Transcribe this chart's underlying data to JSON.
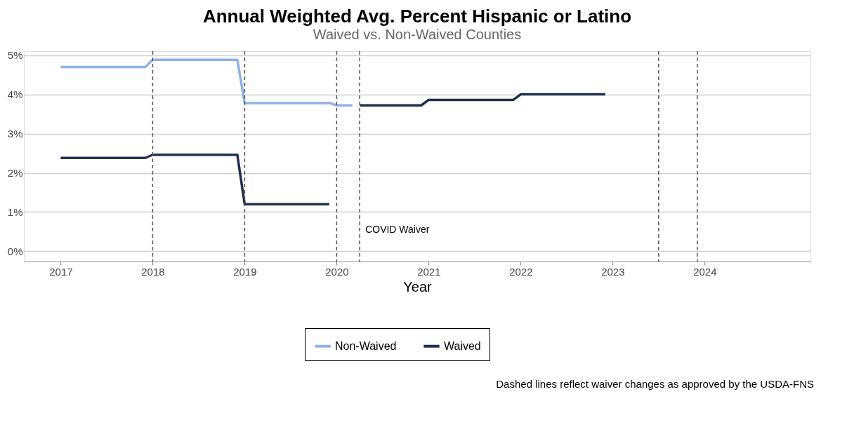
{
  "chart_data": {
    "type": "line",
    "title": "Annual Weighted Avg. Percent Hispanic or Latino",
    "subtitle": "Waived vs. Non-Waived Counties",
    "xlabel": "Year",
    "series": [
      {
        "name": "Non-Waived",
        "color": "#8fb0e8",
        "x": [
          2017,
          2017.92,
          2018,
          2018.92,
          2019,
          2019.92,
          2020,
          2020.17
        ],
        "values": [
          4.7,
          4.7,
          4.88,
          4.88,
          3.78,
          3.78,
          3.72,
          3.72
        ]
      },
      {
        "name": "Waived",
        "color": "#1f2f4d",
        "x": [
          2017,
          2017.92,
          2018,
          2018.92,
          2019,
          2019.92,
          2020.1,
          2020.25,
          2020.92,
          2021,
          2021.92,
          2022,
          2022.92
        ],
        "values": [
          2.38,
          2.38,
          2.46,
          2.46,
          1.2,
          1.2,
          null,
          3.72,
          3.72,
          3.86,
          3.86,
          4.0,
          4.0
        ]
      }
    ],
    "xlim": [
      2016.6,
      2025.15
    ],
    "xticks": [
      2017,
      2018,
      2019,
      2020,
      2021,
      2022,
      2023,
      2024
    ],
    "ylim": [
      -0.26,
      5.1
    ],
    "yticks": [
      {
        "value": 0,
        "label": "0%"
      },
      {
        "value": 1,
        "label": "1%"
      },
      {
        "value": 2,
        "label": "2%"
      },
      {
        "value": 3,
        "label": "3%"
      },
      {
        "value": 4,
        "label": "4%"
      },
      {
        "value": 5,
        "label": "5%"
      }
    ],
    "ref_lines": [
      {
        "axis": "x",
        "value": 2018,
        "color": "#555555",
        "line_style": "dashed"
      },
      {
        "axis": "x",
        "value": 2019,
        "color": "#555555",
        "line_style": "dashed"
      },
      {
        "axis": "x",
        "value": 2020,
        "color": "#555555",
        "line_style": "dashed"
      },
      {
        "axis": "x",
        "value": 2020.25,
        "label": "COVID Waiver",
        "color": "#555555",
        "line_style": "dashed"
      },
      {
        "axis": "x",
        "value": 2023.5,
        "color": "#555555",
        "line_style": "dashed"
      },
      {
        "axis": "x",
        "value": 2023.92,
        "color": "#555555",
        "line_style": "dashed"
      }
    ],
    "annotations": [
      "Dashed lines reflect waiver changes as approved by the USDA-FNS"
    ],
    "grid": "y",
    "legend": "bottom",
    "marker": "none",
    "line_style": "solid"
  }
}
